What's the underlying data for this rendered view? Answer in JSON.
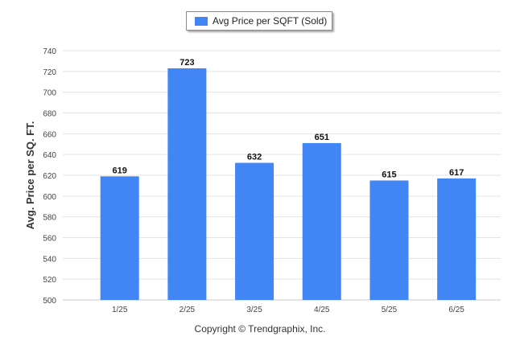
{
  "chart_data": {
    "type": "bar",
    "categories": [
      "1/25",
      "2/25",
      "3/25",
      "4/25",
      "5/25",
      "6/25"
    ],
    "series": [
      {
        "name": "Avg Price per SQFT (Sold)",
        "values": [
          619,
          723,
          632,
          651,
          615,
          617
        ]
      }
    ],
    "data_labels": [
      "619",
      "723",
      "632",
      "651",
      "615",
      "617"
    ],
    "ylabel": "Avg. Price per SQ. FT.",
    "xlabel": "",
    "ylim": [
      500,
      740
    ],
    "yticks": [
      500,
      520,
      540,
      560,
      580,
      600,
      620,
      640,
      660,
      680,
      700,
      720,
      740
    ],
    "grid": true,
    "legend_position": "top-center",
    "bar_color": "#4285f4"
  },
  "footer": {
    "copyright": "Copyright © Trendgraphix, Inc."
  }
}
